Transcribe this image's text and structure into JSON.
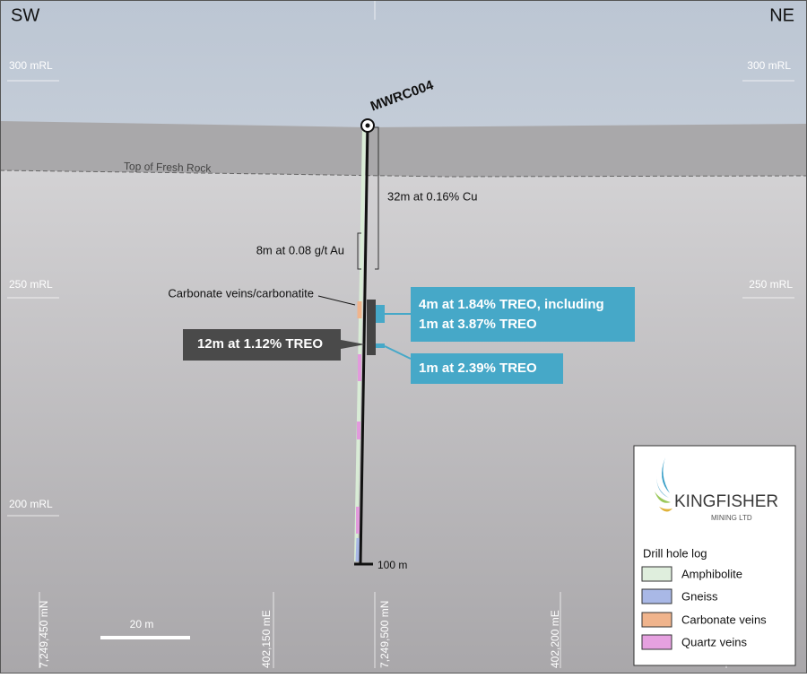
{
  "header": {
    "left": "SW",
    "right": "NE"
  },
  "elevations": {
    "left": [
      "300 mRL",
      "250 mRL",
      "200 mRL"
    ],
    "right": [
      "300 mRL",
      "250 mRL"
    ]
  },
  "drill_hole": {
    "name": "MWRC004",
    "depth_label": "100 m"
  },
  "surface_label": "Top of Fresh Rock",
  "annotations": {
    "copper": "32m at 0.16% Cu",
    "gold": "8m at 0.08 g/t Au",
    "carbonate": "Carbonate veins/carbonatite",
    "treo_main": "12m at 1.12% TREO",
    "treo_upper_1": "4m at 1.84% TREO, including",
    "treo_upper_2": "1m at 3.87% TREO",
    "treo_lower": "1m at 2.39% TREO"
  },
  "grid_labels": [
    "7,249,450 mN",
    "402,150 mE",
    "7,249,500 mN",
    "402,200 mE"
  ],
  "scale_bar": "20 m",
  "logo": {
    "name": "KINGFISHER",
    "subtitle": "MINING LTD"
  },
  "legend": {
    "title": "Drill hole log",
    "items": [
      "Amphibolite",
      "Gneiss",
      "Carbonate veins",
      "Quartz veins"
    ]
  }
}
